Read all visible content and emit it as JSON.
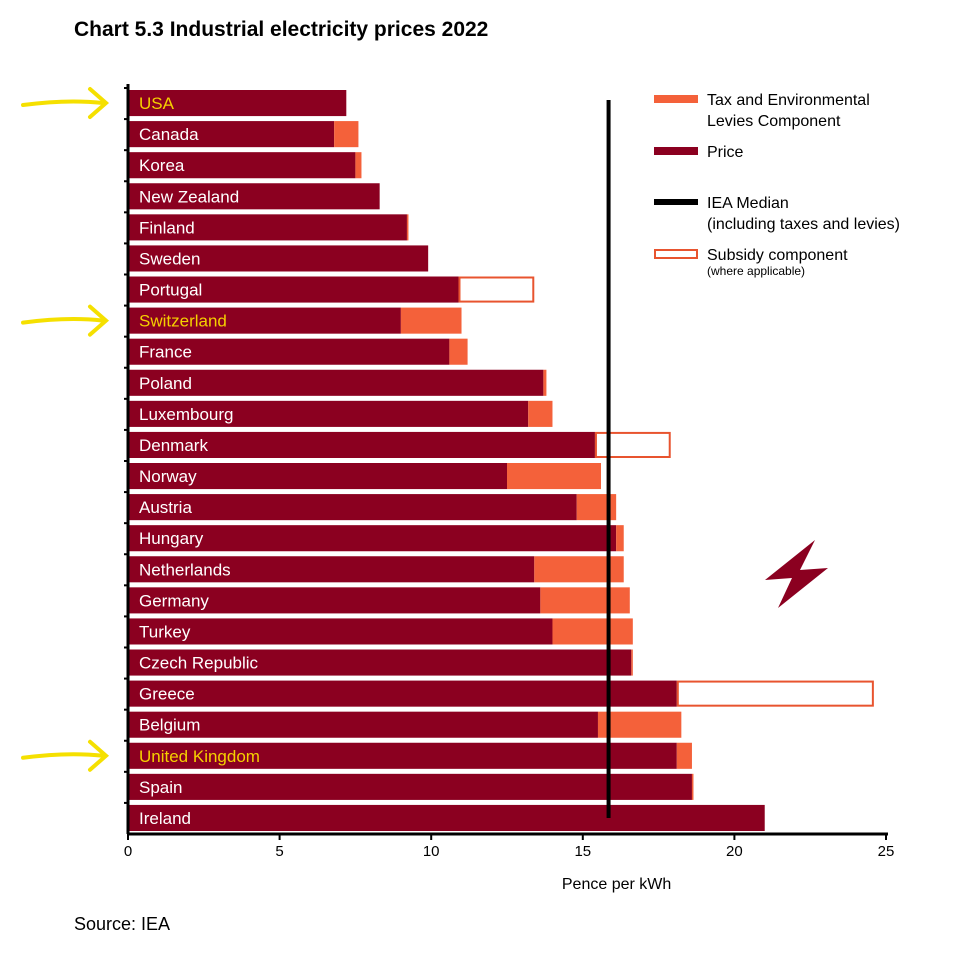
{
  "chart_data": {
    "type": "bar",
    "orientation": "horizontal-stacked",
    "title": "Chart 5.3 Industrial electricity prices 2022",
    "xlabel": "Pence per kWh",
    "ylabel": "",
    "xlim": [
      0,
      25
    ],
    "xticks": [
      0,
      5,
      10,
      15,
      20,
      25
    ],
    "source": "Source: IEA",
    "categories": [
      "USA",
      "Canada",
      "Korea",
      "New Zealand",
      "Finland",
      "Sweden",
      "Portugal",
      "Switzerland",
      "France",
      "Poland",
      "Luxembourg",
      "Denmark",
      "Norway",
      "Austria",
      "Hungary",
      "Netherlands",
      "Germany",
      "Turkey",
      "Czech Republic",
      "Greece",
      "Belgium",
      "United Kingdom",
      "Spain",
      "Ireland"
    ],
    "highlighted": [
      "USA",
      "Switzerland",
      "United Kingdom"
    ],
    "series": [
      {
        "name": "Price",
        "color": "#8b0020",
        "values": [
          7.2,
          6.8,
          7.5,
          8.3,
          9.2,
          9.9,
          10.9,
          9.0,
          10.6,
          13.7,
          13.2,
          15.4,
          12.5,
          14.8,
          16.1,
          13.4,
          13.6,
          14.0,
          16.6,
          18.1,
          15.5,
          18.1,
          18.6,
          21.0
        ]
      },
      {
        "name": "Tax and Environmental Levies Component",
        "color": "#f4613a",
        "values": [
          0,
          0.8,
          0.2,
          0,
          0.05,
          0,
          0,
          2.0,
          0.6,
          0.1,
          0.8,
          0,
          3.1,
          1.3,
          0.25,
          2.95,
          2.95,
          2.65,
          0.05,
          0,
          2.75,
          0.5,
          0.05,
          0
        ]
      },
      {
        "name": "Subsidy component (where applicable)",
        "color": "#e8542f",
        "style": "outline",
        "values": [
          0,
          0,
          0,
          0,
          0,
          0,
          2.5,
          0,
          0,
          0,
          0,
          2.5,
          0,
          0,
          0,
          0,
          0,
          0,
          0,
          6.5,
          0,
          0,
          0,
          0
        ]
      }
    ],
    "reference_lines": [
      {
        "name": "IEA Median (including taxes and levies)",
        "value": 15.85,
        "color": "#000000"
      }
    ],
    "legend": {
      "placement": "top-right",
      "entries": [
        {
          "label": "Tax and Environmental",
          "label2": "Levies Component",
          "kind": "tax"
        },
        {
          "label": "Price",
          "kind": "price"
        },
        {
          "label": "IEA Median",
          "label2": "(including taxes and levies)",
          "kind": "median"
        },
        {
          "label": "Subsidy component",
          "label2": "(where applicable)",
          "kind": "subsidy"
        }
      ]
    },
    "annotation_color": "#f5e000"
  }
}
